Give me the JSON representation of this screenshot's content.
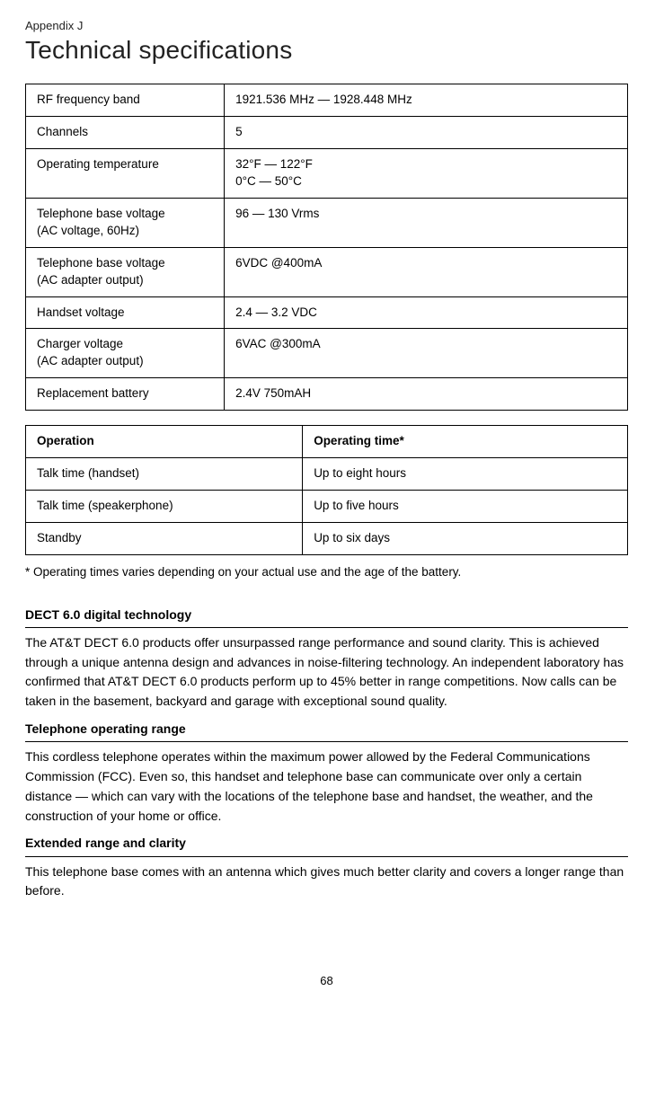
{
  "appendix_label": "Appendix J",
  "page_title": "Technical specifications",
  "specs": [
    {
      "label": "RF frequency band",
      "value": "1921.536 MHz — 1928.448 MHz"
    },
    {
      "label": "Channels",
      "value": "5"
    },
    {
      "label": "Operating temperature",
      "value": "32°F — 122°F\n0°C — 50°C"
    },
    {
      "label": "Telephone base voltage\n(AC voltage, 60Hz)",
      "value": "96 — 130 Vrms"
    },
    {
      "label": "Telephone base voltage\n(AC adapter output)",
      "value": "6VDC @400mA"
    },
    {
      "label": "Handset voltage",
      "value": "2.4 — 3.2 VDC"
    },
    {
      "label": "Charger voltage\n(AC adapter output)",
      "value": "6VAC @300mA"
    },
    {
      "label": "Replacement battery",
      "value": "2.4V 750mAH"
    }
  ],
  "op_table": {
    "header_operation": "Operation",
    "header_time": "Operating time*",
    "rows": [
      {
        "operation": "Talk time (handset)",
        "time": "Up to eight hours"
      },
      {
        "operation": "Talk time (speakerphone)",
        "time": "Up to five hours"
      },
      {
        "operation": "Standby",
        "time": "Up to six days"
      }
    ]
  },
  "footnote": "* Operating times varies depending on your actual use and the age of the battery.",
  "sections": [
    {
      "heading": "DECT 6.0 digital technology",
      "body": "The AT&T DECT 6.0 products offer unsurpassed range performance and sound clarity. This is achieved through a unique antenna design and advances in noise-filtering technology. An independent laboratory has confirmed that AT&T DECT 6.0 products perform up to 45% better in range competitions. Now calls can be taken in the basement, backyard and garage with exceptional sound quality."
    },
    {
      "heading": "Telephone operating range",
      "body": "This cordless telephone operates within the maximum power allowed by the Federal Communications Commission (FCC). Even so, this handset and telephone base can communicate over only a certain distance — which can vary with the locations of the telephone base and handset, the weather, and the construction of your home or office."
    },
    {
      "heading": "Extended range and clarity",
      "body": "This telephone base comes with an antenna which gives much better clarity and covers a longer range than before."
    }
  ],
  "page_number": "68"
}
